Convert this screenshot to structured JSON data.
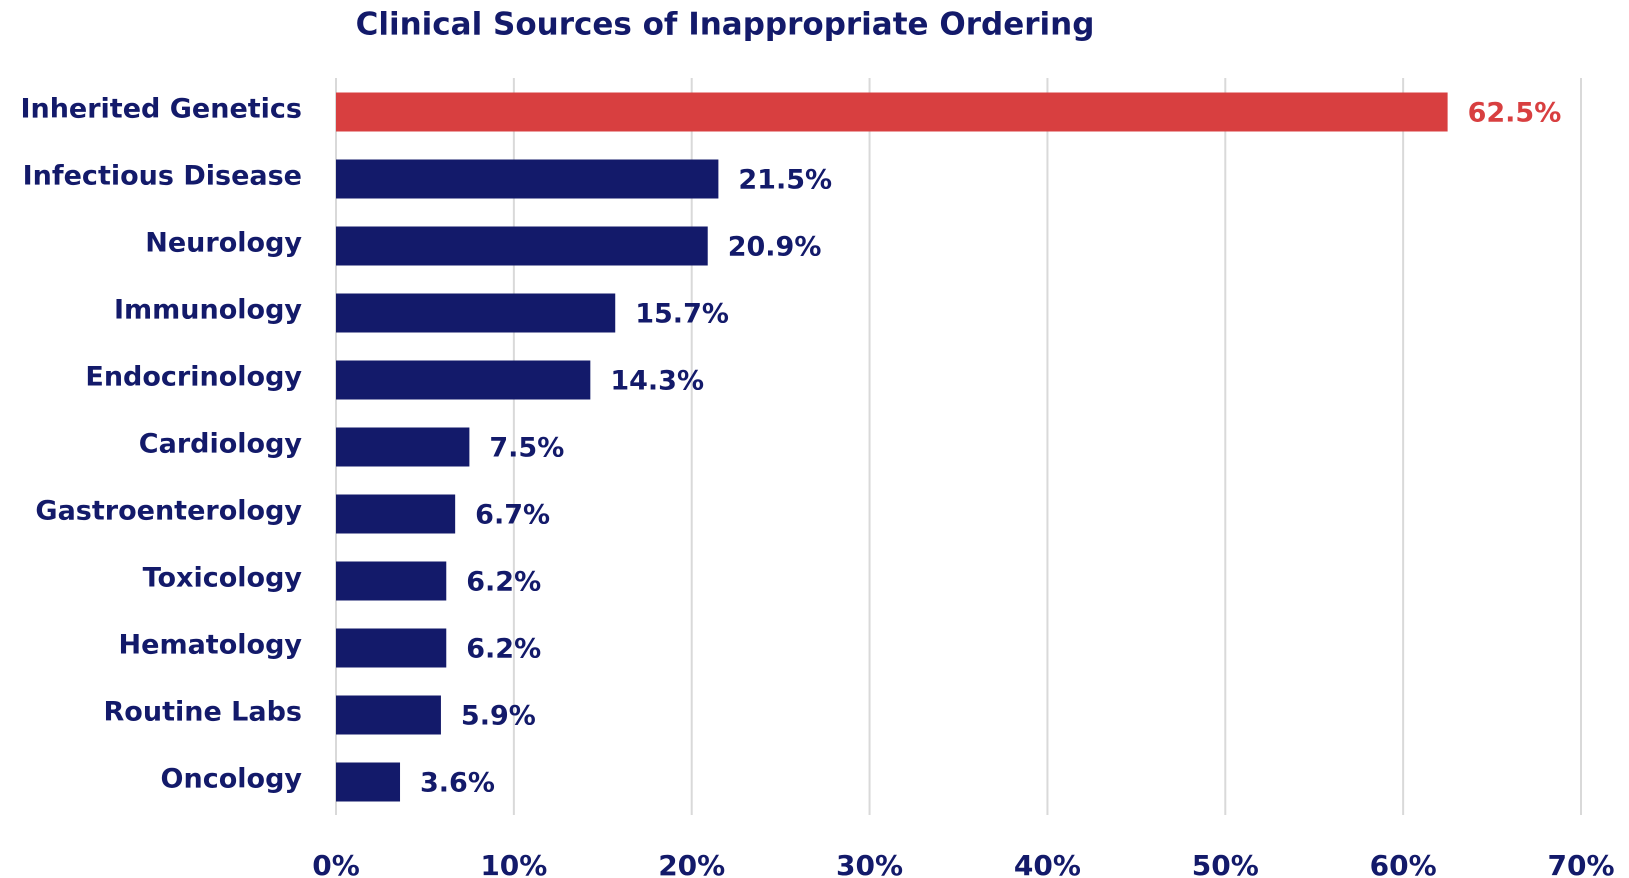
{
  "chart_data": {
    "type": "bar",
    "orientation": "horizontal",
    "title": "Clinical Sources of Inappropriate Ordering",
    "categories": [
      "Inherited Genetics",
      "Infectious Disease",
      "Neurology",
      "Immunology",
      "Endocrinology",
      "Cardiology",
      "Gastroenterology",
      "Toxicology",
      "Hematology",
      "Routine Labs",
      "Oncology"
    ],
    "values": [
      62.5,
      21.5,
      20.9,
      15.7,
      14.3,
      7.5,
      6.7,
      6.2,
      6.2,
      5.9,
      3.6
    ],
    "value_labels": [
      "62.5%",
      "21.5%",
      "20.9%",
      "15.7%",
      "14.3%",
      "7.5%",
      "6.7%",
      "6.2%",
      "6.2%",
      "5.9%",
      "3.6%"
    ],
    "colors": [
      "#d83f40",
      "#131a6a",
      "#131a6a",
      "#131a6a",
      "#131a6a",
      "#131a6a",
      "#131a6a",
      "#131a6a",
      "#131a6a",
      "#131a6a",
      "#131a6a"
    ],
    "xlim": [
      0,
      70
    ],
    "xticks": [
      {
        "value": 0,
        "label": "0%"
      },
      {
        "value": 10,
        "label": "10%"
      },
      {
        "value": 20,
        "label": "20%"
      },
      {
        "value": 30,
        "label": "30%"
      },
      {
        "value": 40,
        "label": "40%"
      },
      {
        "value": 50,
        "label": "50%"
      },
      {
        "value": 60,
        "label": "60%"
      },
      {
        "value": 70,
        "label": "70%"
      }
    ],
    "grid": true
  }
}
